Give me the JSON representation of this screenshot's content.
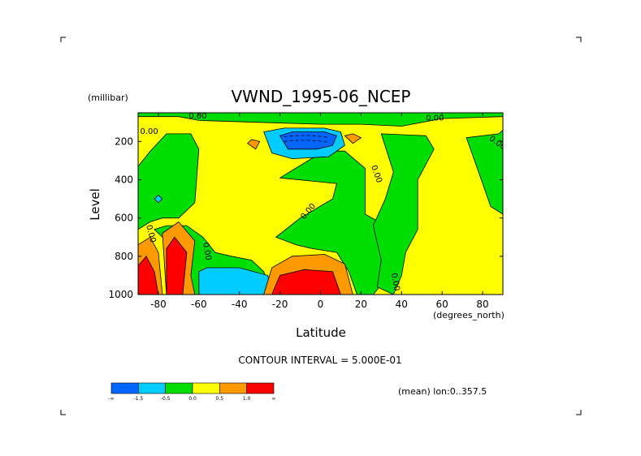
{
  "chart_data": {
    "type": "heatmap",
    "title": "VWND_1995-06_NCEP",
    "xlabel": "Latitude",
    "ylabel": "Level",
    "x_units": "(degrees_north)",
    "y_units": "(millibar)",
    "xlim": [
      -90,
      90
    ],
    "ylim": [
      1000,
      50
    ],
    "x_ticks": [
      -80,
      -60,
      -40,
      -20,
      0,
      20,
      40,
      60,
      80
    ],
    "y_ticks": [
      200,
      400,
      600,
      800,
      1000
    ],
    "contour_interval_text": "CONTOUR INTERVAL = 5.000E-01",
    "footnote": "(mean) lon:0..357.5",
    "contour_labels": [
      "0.00",
      "0.00",
      "0.00",
      "0.00",
      "0.00",
      "0.00",
      "0.00",
      "0.00",
      "0.00"
    ],
    "colorbar": {
      "colors": [
        "#0066ff",
        "#00ccff",
        "#00dd00",
        "#ffff00",
        "#ff9900",
        "#ff0000"
      ],
      "labels": [
        "-∞",
        "-1.5",
        "-0.5",
        "0.0",
        "0.5",
        "1.0",
        "∞"
      ]
    },
    "regions": [
      {
        "name": "background",
        "value": 0.25,
        "poly": [
          [
            -90,
            50
          ],
          [
            90,
            50
          ],
          [
            90,
            1000
          ],
          [
            -90,
            1000
          ]
        ]
      },
      {
        "name": "green-upper-band",
        "value": -0.25,
        "poly": [
          [
            -90,
            50
          ],
          [
            90,
            50
          ],
          [
            90,
            70
          ],
          [
            60,
            80
          ],
          [
            40,
            120
          ],
          [
            20,
            110
          ],
          [
            0,
            110
          ],
          [
            -30,
            100
          ],
          [
            -60,
            90
          ],
          [
            -70,
            70
          ],
          [
            -90,
            70
          ]
        ]
      },
      {
        "name": "green-southern-column",
        "value": -0.25,
        "poly": [
          [
            -90,
            330
          ],
          [
            -84,
            250
          ],
          [
            -76,
            160
          ],
          [
            -64,
            160
          ],
          [
            -60,
            240
          ],
          [
            -62,
            520
          ],
          [
            -70,
            600
          ],
          [
            -78,
            600
          ],
          [
            -84,
            620
          ],
          [
            -90,
            660
          ]
        ]
      },
      {
        "name": "green-southern-low",
        "value": -0.25,
        "poly": [
          [
            -82,
            660
          ],
          [
            -76,
            640
          ],
          [
            -66,
            640
          ],
          [
            -58,
            700
          ],
          [
            -52,
            780
          ],
          [
            -44,
            800
          ],
          [
            -34,
            820
          ],
          [
            -28,
            880
          ],
          [
            -24,
            1000
          ],
          [
            -62,
            1000
          ],
          [
            -66,
            880
          ],
          [
            -70,
            790
          ],
          [
            -76,
            720
          ]
        ]
      },
      {
        "name": "green-tropical-north",
        "value": -0.25,
        "poly": [
          [
            -20,
            390
          ],
          [
            -6,
            300
          ],
          [
            2,
            250
          ],
          [
            12,
            250
          ],
          [
            22,
            340
          ],
          [
            22,
            580
          ],
          [
            34,
            650
          ],
          [
            40,
            820
          ],
          [
            26,
            1000
          ],
          [
            18,
            1000
          ],
          [
            14,
            880
          ],
          [
            8,
            780
          ],
          [
            -4,
            760
          ],
          [
            -12,
            740
          ],
          [
            -22,
            700
          ],
          [
            -10,
            600
          ],
          [
            6,
            500
          ],
          [
            8,
            420
          ]
        ]
      },
      {
        "name": "green-northern-1",
        "value": -0.25,
        "poly": [
          [
            30,
            160
          ],
          [
            52,
            170
          ],
          [
            56,
            240
          ],
          [
            48,
            400
          ],
          [
            48,
            660
          ],
          [
            42,
            780
          ],
          [
            40,
            900
          ],
          [
            36,
            1000
          ],
          [
            28,
            960
          ],
          [
            30,
            820
          ],
          [
            26,
            640
          ],
          [
            32,
            500
          ],
          [
            36,
            360
          ]
        ]
      },
      {
        "name": "green-northern-2",
        "value": -0.25,
        "poly": [
          [
            72,
            180
          ],
          [
            88,
            160
          ],
          [
            90,
            140
          ],
          [
            90,
            580
          ],
          [
            84,
            540
          ],
          [
            80,
            420
          ],
          [
            76,
            300
          ]
        ]
      },
      {
        "name": "cyan-jet",
        "value": -1.0,
        "poly": [
          [
            -28,
            150
          ],
          [
            -18,
            130
          ],
          [
            2,
            130
          ],
          [
            10,
            150
          ],
          [
            12,
            220
          ],
          [
            4,
            280
          ],
          [
            -14,
            290
          ],
          [
            -24,
            260
          ]
        ]
      },
      {
        "name": "blue-jet-core",
        "value": -1.75,
        "poly": [
          [
            -20,
            170
          ],
          [
            -14,
            150
          ],
          [
            2,
            150
          ],
          [
            8,
            170
          ],
          [
            6,
            220
          ],
          [
            -2,
            240
          ],
          [
            -16,
            240
          ]
        ]
      },
      {
        "name": "cyan-southern-surface",
        "value": -1.0,
        "poly": [
          [
            -60,
            880
          ],
          [
            -56,
            860
          ],
          [
            -40,
            860
          ],
          [
            -26,
            900
          ],
          [
            -24,
            1000
          ],
          [
            -60,
            1000
          ]
        ]
      },
      {
        "name": "cyan-southern-patch",
        "value": -1.0,
        "poly": [
          [
            -82,
            500
          ],
          [
            -80,
            480
          ],
          [
            -78,
            500
          ],
          [
            -80,
            520
          ]
        ]
      },
      {
        "name": "orange-patch-1",
        "value": 0.75,
        "poly": [
          [
            -36,
            210
          ],
          [
            -34,
            190
          ],
          [
            -30,
            200
          ],
          [
            -32,
            240
          ]
        ]
      },
      {
        "name": "orange-patch-2",
        "value": 0.75,
        "poly": [
          [
            12,
            170
          ],
          [
            16,
            160
          ],
          [
            20,
            180
          ],
          [
            16,
            210
          ]
        ]
      },
      {
        "name": "orange-southern-1",
        "value": 0.75,
        "poly": [
          [
            -90,
            740
          ],
          [
            -84,
            700
          ],
          [
            -80,
            780
          ],
          [
            -78,
            1000
          ],
          [
            -90,
            1000
          ]
        ]
      },
      {
        "name": "orange-southern-2",
        "value": 0.75,
        "poly": [
          [
            -78,
            680
          ],
          [
            -70,
            620
          ],
          [
            -62,
            720
          ],
          [
            -64,
            900
          ],
          [
            -62,
            1000
          ],
          [
            -76,
            1000
          ]
        ]
      },
      {
        "name": "orange-tropical",
        "value": 0.75,
        "poly": [
          [
            -28,
            1000
          ],
          [
            -24,
            860
          ],
          [
            -14,
            800
          ],
          [
            2,
            790
          ],
          [
            12,
            840
          ],
          [
            16,
            1000
          ]
        ]
      },
      {
        "name": "red-southern-1",
        "value": 1.25,
        "poly": [
          [
            -90,
            850
          ],
          [
            -86,
            800
          ],
          [
            -82,
            880
          ],
          [
            -80,
            1000
          ],
          [
            -90,
            1000
          ]
        ]
      },
      {
        "name": "red-southern-2",
        "value": 1.25,
        "poly": [
          [
            -76,
            760
          ],
          [
            -72,
            700
          ],
          [
            -66,
            780
          ],
          [
            -68,
            1000
          ],
          [
            -76,
            1000
          ]
        ]
      },
      {
        "name": "red-tropical",
        "value": 1.25,
        "poly": [
          [
            -24,
            1000
          ],
          [
            -20,
            900
          ],
          [
            -8,
            870
          ],
          [
            6,
            880
          ],
          [
            10,
            1000
          ]
        ]
      }
    ]
  }
}
